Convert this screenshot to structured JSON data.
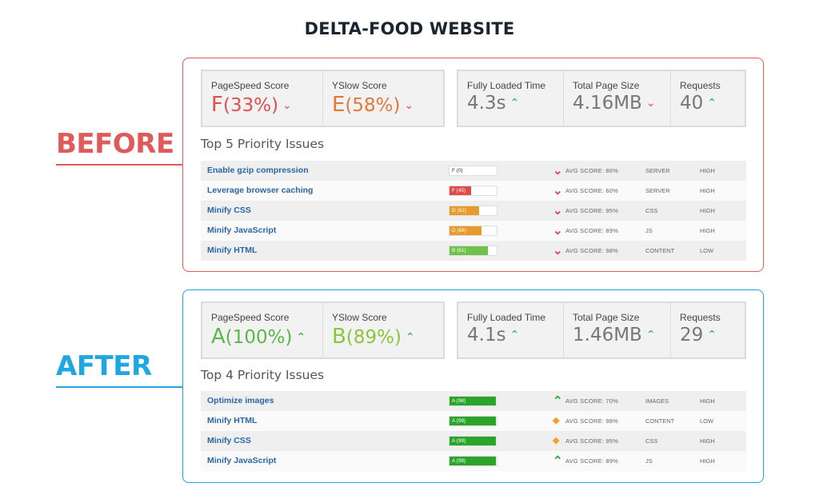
{
  "page_title": "DELTA-FOOD WEBSITE",
  "colors": {
    "before": "#e05a5a",
    "after": "#1ea7e1",
    "grade_a": "#6cc24a",
    "grade_b": "#8fcf45",
    "grade_d": "#e89a2a",
    "grade_f": "#e04a4a",
    "up": "#2eaa47",
    "down": "#e24a4a"
  },
  "before": {
    "label": "BEFORE",
    "metrics": {
      "pagespeed": {
        "label": "PageSpeed Score",
        "grade": "F",
        "value": "(33%)",
        "arrow": "down",
        "icon": "chevron-down-icon"
      },
      "yslow": {
        "label": "YSlow Score",
        "grade": "E",
        "value": "(58%)",
        "arrow": "down",
        "icon": "chevron-down-icon"
      },
      "load_time": {
        "label": "Fully Loaded Time",
        "value": "4.3s",
        "arrow": "up",
        "icon": "chevron-up-icon"
      },
      "page_size": {
        "label": "Total Page Size",
        "value": "4.16MB",
        "arrow": "down",
        "icon": "chevron-down-icon"
      },
      "requests": {
        "label": "Requests",
        "value": "40",
        "arrow": "up",
        "icon": "chevron-up-icon"
      }
    },
    "issues_title": "Top 5 Priority Issues",
    "issues": [
      {
        "name": "Enable gzip compression",
        "grade": "F (0)",
        "score": 0,
        "indicator": "down",
        "avg": "AVG SCORE: 86%",
        "category": "SERVER",
        "priority": "HIGH"
      },
      {
        "name": "Leverage browser caching",
        "grade": "F (45)",
        "score": 45,
        "indicator": "down",
        "avg": "AVG SCORE: 60%",
        "category": "SERVER",
        "priority": "HIGH"
      },
      {
        "name": "Minify CSS",
        "grade": "D (62)",
        "score": 62,
        "indicator": "down",
        "avg": "AVG SCORE: 95%",
        "category": "CSS",
        "priority": "HIGH"
      },
      {
        "name": "Minify JavaScript",
        "grade": "D (68)",
        "score": 68,
        "indicator": "down",
        "avg": "AVG SCORE: 89%",
        "category": "JS",
        "priority": "HIGH"
      },
      {
        "name": "Minify HTML",
        "grade": "B (81)",
        "score": 81,
        "indicator": "down",
        "avg": "AVG SCORE: 98%",
        "category": "CONTENT",
        "priority": "LOW"
      }
    ]
  },
  "after": {
    "label": "AFTER",
    "metrics": {
      "pagespeed": {
        "label": "PageSpeed Score",
        "grade": "A",
        "value": "(100%)",
        "arrow": "up",
        "icon": "chevron-up-icon"
      },
      "yslow": {
        "label": "YSlow Score",
        "grade": "B",
        "value": "(89%)",
        "arrow": "up",
        "icon": "chevron-up-icon"
      },
      "load_time": {
        "label": "Fully Loaded Time",
        "value": "4.1s",
        "arrow": "up",
        "icon": "chevron-up-icon"
      },
      "page_size": {
        "label": "Total Page Size",
        "value": "1.46MB",
        "arrow": "up",
        "icon": "chevron-up-icon"
      },
      "requests": {
        "label": "Requests",
        "value": "29",
        "arrow": "up",
        "icon": "chevron-up-icon"
      }
    },
    "issues_title": "Top 4 Priority Issues",
    "issues": [
      {
        "name": "Optimize images",
        "grade": "A (98)",
        "score": 98,
        "indicator": "up",
        "avg": "AVG SCORE: 70%",
        "category": "IMAGES",
        "priority": "HIGH"
      },
      {
        "name": "Minify HTML",
        "grade": "A (99)",
        "score": 99,
        "indicator": "mid",
        "avg": "AVG SCORE: 98%",
        "category": "CONTENT",
        "priority": "LOW"
      },
      {
        "name": "Minify CSS",
        "grade": "A (99)",
        "score": 99,
        "indicator": "mid",
        "avg": "AVG SCORE: 95%",
        "category": "CSS",
        "priority": "HIGH"
      },
      {
        "name": "Minify JavaScript",
        "grade": "A (99)",
        "score": 99,
        "indicator": "up",
        "avg": "AVG SCORE: 89%",
        "category": "JS",
        "priority": "HIGH"
      }
    ]
  }
}
